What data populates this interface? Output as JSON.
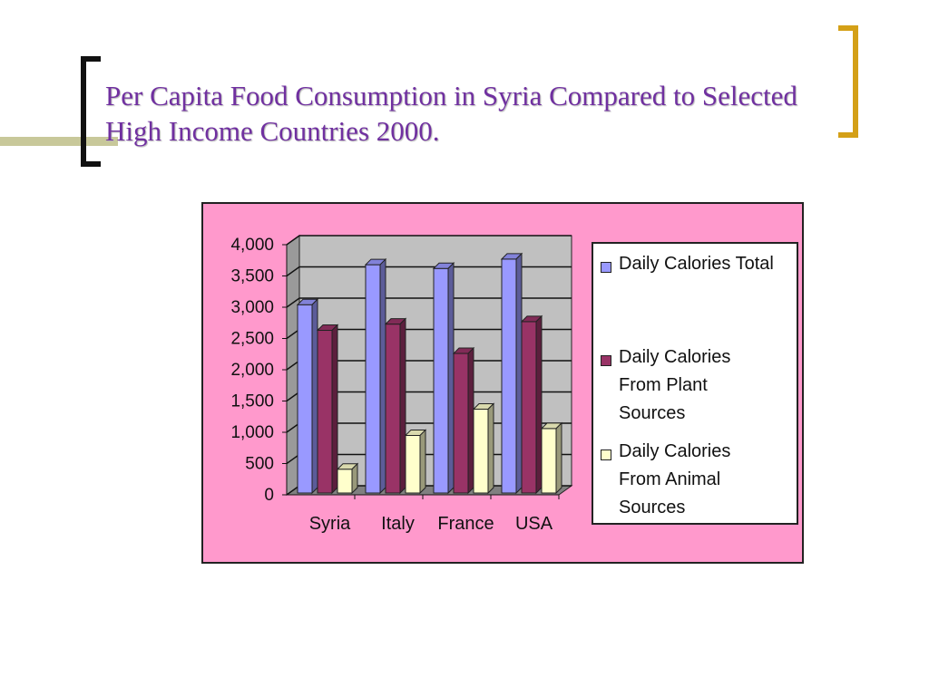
{
  "slide": {
    "title": "Per Capita Food Consumption in Syria Compared to Selected High Income Countries 2000."
  },
  "colors": {
    "title": "#7030a0",
    "chart_background": "#ff99cc",
    "plot_wall": "#c0c0c0",
    "left_bracket": "#111111",
    "right_bracket": "#d4a017"
  },
  "chart_data": {
    "type": "bar",
    "style": "3d-clustered-column",
    "title": "",
    "xlabel": "",
    "ylabel": "",
    "categories": [
      "Syria",
      "Italy",
      "France",
      "USA"
    ],
    "series": [
      {
        "name": "Daily Calories Total",
        "values": [
          3040,
          3680,
          3620,
          3770
        ],
        "color": "#9999ff"
      },
      {
        "name": "Daily Calories From Plant Sources",
        "values": [
          2630,
          2730,
          2260,
          2770
        ],
        "color": "#993366"
      },
      {
        "name": "Daily Calories From Animal Sources",
        "values": [
          410,
          950,
          1370,
          1060
        ],
        "color": "#ffffcc"
      }
    ],
    "ylim": [
      0,
      4000
    ],
    "yticks": [
      0,
      500,
      1000,
      1500,
      2000,
      2500,
      3000,
      3500,
      4000
    ],
    "ytick_labels": [
      "0",
      "500",
      "1,000",
      "1,500",
      "2,000",
      "2,500",
      "3,000",
      "3,500",
      "4,000"
    ],
    "grid": true,
    "legend_position": "right"
  }
}
